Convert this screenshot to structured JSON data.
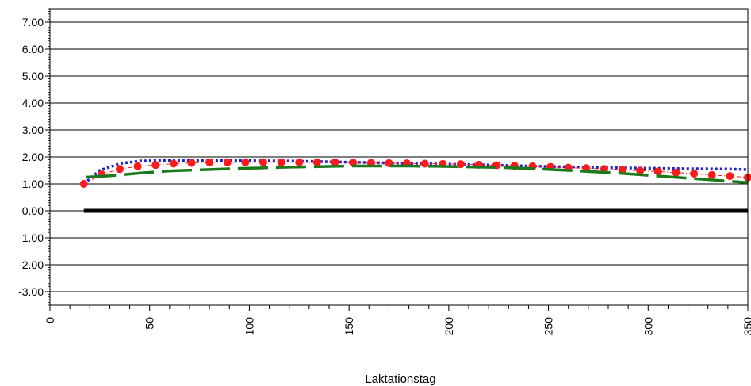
{
  "chart_data": {
    "type": "line",
    "title": "",
    "xlabel": "Laktationstag",
    "ylabel": "",
    "xlim": [
      0,
      350
    ],
    "ylim": [
      -3.5,
      7.5
    ],
    "x_ticks": [
      0,
      50,
      100,
      150,
      200,
      250,
      300,
      350
    ],
    "y_ticks": [
      7,
      6,
      5,
      4,
      3,
      2,
      1,
      0,
      -1,
      -2,
      -3
    ],
    "y_tick_labels": [
      "7.00",
      "6.00",
      "5.00",
      "4.00",
      "3.00",
      "2.00",
      "1.00",
      "0.00",
      "-1.00",
      "-2.00",
      "-3.00"
    ],
    "x_tick_labels": [
      "0",
      "50",
      "100",
      "150",
      "200",
      "250",
      "300",
      "350"
    ],
    "grid": "horizontal",
    "legend": "none",
    "series": [
      {
        "style": "solid",
        "color": "#000000",
        "x": [
          17,
          350
        ],
        "y": [
          0,
          0
        ]
      },
      {
        "style": "dotted",
        "color": "#1f1fd0",
        "x": [
          17,
          25,
          35,
          45,
          60,
          80,
          100,
          120,
          140,
          160,
          180,
          200,
          220,
          240,
          260,
          280,
          300,
          320,
          340,
          350
        ],
        "y": [
          1.0,
          1.5,
          1.75,
          1.85,
          1.87,
          1.87,
          1.86,
          1.85,
          1.82,
          1.79,
          1.76,
          1.73,
          1.7,
          1.66,
          1.63,
          1.6,
          1.58,
          1.56,
          1.55,
          1.53
        ]
      },
      {
        "style": "markers",
        "color": "#ff1a1a",
        "x": [
          17,
          26,
          35,
          44,
          53,
          62,
          71,
          80,
          89,
          98,
          107,
          116,
          125,
          134,
          143,
          152,
          161,
          170,
          179,
          188,
          197,
          206,
          215,
          224,
          233,
          242,
          251,
          260,
          269,
          278,
          287,
          296,
          305,
          314,
          323,
          332,
          341,
          350
        ],
        "y": [
          1.0,
          1.35,
          1.55,
          1.65,
          1.7,
          1.75,
          1.78,
          1.8,
          1.8,
          1.8,
          1.8,
          1.8,
          1.8,
          1.8,
          1.8,
          1.79,
          1.78,
          1.77,
          1.76,
          1.75,
          1.74,
          1.73,
          1.71,
          1.69,
          1.67,
          1.65,
          1.63,
          1.6,
          1.58,
          1.55,
          1.52,
          1.49,
          1.46,
          1.42,
          1.38,
          1.33,
          1.29,
          1.24
        ]
      },
      {
        "style": "dashed",
        "color": "#1a7a1a",
        "x": [
          18,
          30,
          45,
          60,
          75,
          90,
          105,
          120,
          135,
          150,
          165,
          180,
          195,
          210,
          225,
          240,
          255,
          270,
          285,
          300,
          315,
          330,
          350
        ],
        "y": [
          1.25,
          1.3,
          1.4,
          1.48,
          1.52,
          1.56,
          1.59,
          1.62,
          1.64,
          1.66,
          1.66,
          1.66,
          1.65,
          1.63,
          1.61,
          1.57,
          1.52,
          1.46,
          1.4,
          1.32,
          1.24,
          1.16,
          1.05
        ]
      }
    ]
  }
}
